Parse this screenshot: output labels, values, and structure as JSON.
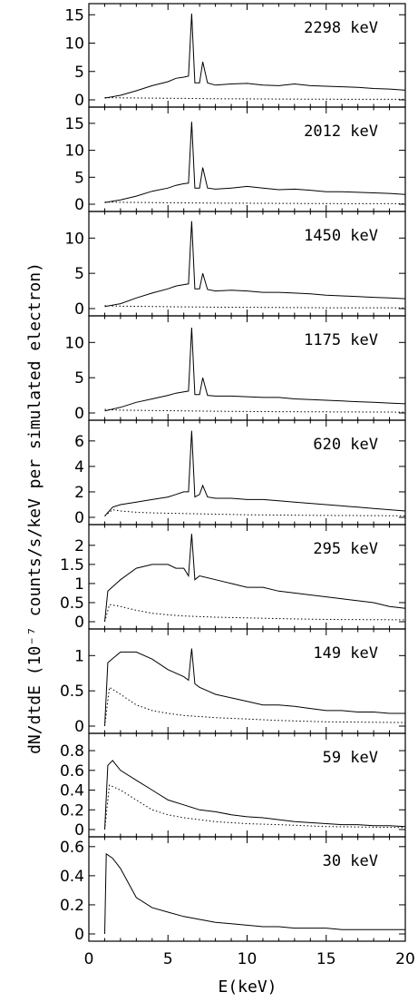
{
  "chart_data": {
    "type": "line",
    "layout": "stacked panels sharing x axis",
    "xlabel": "E(keV)",
    "ylabel": "dN/dtdE (10⁻⁷ counts/s/keV per simulated electron)",
    "xlim": [
      0,
      20
    ],
    "x_ticks": [
      0,
      5,
      10,
      15,
      20
    ],
    "x_tick_labels": [
      "0",
      "5",
      "10",
      "15",
      "20"
    ],
    "panels": [
      {
        "label": "2298 keV",
        "ylim": [
          0,
          16
        ],
        "yticks": [
          0,
          5,
          10,
          15
        ],
        "ytick_labels": [
          "0",
          "5",
          "10",
          "15"
        ],
        "series": [
          {
            "style": "solid",
            "x": [
              1,
              2,
              3,
              4,
              5,
              5.5,
              6,
              6.3,
              6.5,
              6.7,
              7,
              7.2,
              7.5,
              8,
              9,
              10,
              11,
              12,
              13,
              14,
              15,
              16,
              17,
              18,
              19,
              20
            ],
            "y": [
              0.3,
              0.8,
              1.6,
              2.5,
              3.2,
              3.8,
              4.0,
              4.2,
              15.2,
              3.0,
              3.0,
              6.7,
              3.0,
              2.6,
              2.8,
              2.9,
              2.6,
              2.5,
              2.8,
              2.5,
              2.4,
              2.3,
              2.2,
              2.0,
              1.9,
              1.7
            ]
          },
          {
            "style": "dotted",
            "x": [
              1,
              2,
              4,
              6,
              8,
              10,
              12,
              15,
              20
            ],
            "y": [
              0.4,
              0.35,
              0.3,
              0.25,
              0.2,
              0.18,
              0.15,
              0.12,
              0.1
            ]
          }
        ]
      },
      {
        "label": "2012 keV",
        "ylim": [
          0,
          17
        ],
        "yticks": [
          0,
          5,
          10,
          15
        ],
        "ytick_labels": [
          "0",
          "5",
          "10",
          "15"
        ],
        "series": [
          {
            "style": "solid",
            "x": [
              1,
              2,
              3,
              4,
              5,
              5.5,
              6,
              6.3,
              6.5,
              6.7,
              7,
              7.2,
              7.5,
              8,
              9,
              10,
              11,
              12,
              13,
              14,
              15,
              16,
              17,
              18,
              19,
              20
            ],
            "y": [
              0.3,
              0.8,
              1.5,
              2.4,
              3.0,
              3.5,
              3.8,
              3.9,
              15.3,
              3.0,
              3.0,
              6.8,
              3.0,
              2.8,
              3.0,
              3.3,
              3.0,
              2.7,
              2.8,
              2.6,
              2.3,
              2.3,
              2.2,
              2.1,
              2.0,
              1.8
            ]
          },
          {
            "style": "dotted",
            "x": [
              1,
              2,
              4,
              6,
              8,
              10,
              12,
              15,
              20
            ],
            "y": [
              0.4,
              0.35,
              0.3,
              0.25,
              0.2,
              0.18,
              0.15,
              0.12,
              0.1
            ]
          }
        ]
      },
      {
        "label": "1450 keV",
        "ylim": [
          0,
          13
        ],
        "yticks": [
          0,
          5,
          10
        ],
        "ytick_labels": [
          "0",
          "5",
          "10"
        ],
        "series": [
          {
            "style": "solid",
            "x": [
              1,
              2,
              3,
              4,
              5,
              5.5,
              6,
              6.3,
              6.5,
              6.7,
              7,
              7.2,
              7.5,
              8,
              9,
              10,
              11,
              12,
              13,
              14,
              15,
              16,
              17,
              18,
              19,
              20
            ],
            "y": [
              0.3,
              0.7,
              1.5,
              2.2,
              2.8,
              3.2,
              3.4,
              3.5,
              12.4,
              2.8,
              2.8,
              5.0,
              2.7,
              2.5,
              2.6,
              2.5,
              2.3,
              2.3,
              2.2,
              2.1,
              1.9,
              1.8,
              1.7,
              1.6,
              1.5,
              1.4
            ]
          },
          {
            "style": "dotted",
            "x": [
              1,
              2,
              4,
              6,
              8,
              10,
              12,
              15,
              20
            ],
            "y": [
              0.4,
              0.35,
              0.3,
              0.25,
              0.2,
              0.18,
              0.15,
              0.12,
              0.1
            ]
          }
        ]
      },
      {
        "label": "1175 keV",
        "ylim": [
          0,
          13
        ],
        "yticks": [
          0,
          5,
          10
        ],
        "ytick_labels": [
          "0",
          "5",
          "10"
        ],
        "series": [
          {
            "style": "solid",
            "x": [
              1,
              2,
              3,
              4,
              5,
              5.5,
              6,
              6.3,
              6.5,
              6.7,
              7,
              7.2,
              7.5,
              8,
              9,
              10,
              11,
              12,
              13,
              14,
              15,
              16,
              17,
              18,
              19,
              20
            ],
            "y": [
              0.3,
              0.8,
              1.5,
              2.0,
              2.5,
              2.8,
              3.0,
              3.1,
              12.1,
              2.6,
              2.6,
              5.0,
              2.5,
              2.4,
              2.4,
              2.3,
              2.2,
              2.2,
              2.0,
              1.9,
              1.8,
              1.7,
              1.6,
              1.5,
              1.4,
              1.3
            ]
          },
          {
            "style": "dotted",
            "x": [
              1,
              2,
              4,
              6,
              8,
              10,
              12,
              15,
              20
            ],
            "y": [
              0.5,
              0.4,
              0.35,
              0.3,
              0.25,
              0.2,
              0.18,
              0.15,
              0.12
            ]
          }
        ]
      },
      {
        "label": "620 keV",
        "ylim": [
          0,
          7.2
        ],
        "yticks": [
          0,
          2,
          4,
          6
        ],
        "ytick_labels": [
          "0",
          "2",
          "4",
          "6"
        ],
        "series": [
          {
            "style": "solid",
            "x": [
              1,
              1.5,
              2,
              3,
              4,
              5,
              5.5,
              6,
              6.3,
              6.5,
              6.7,
              7,
              7.2,
              7.5,
              8,
              9,
              10,
              11,
              12,
              13,
              14,
              15,
              16,
              17,
              18,
              19,
              20
            ],
            "y": [
              0.1,
              0.8,
              1.0,
              1.2,
              1.4,
              1.6,
              1.8,
              2.0,
              2.0,
              6.8,
              1.6,
              1.8,
              2.5,
              1.6,
              1.5,
              1.5,
              1.4,
              1.4,
              1.3,
              1.2,
              1.1,
              1.0,
              0.9,
              0.8,
              0.7,
              0.6,
              0.5
            ]
          },
          {
            "style": "dotted",
            "x": [
              1,
              1.5,
              2,
              3,
              4,
              6,
              8,
              10,
              12,
              15,
              20
            ],
            "y": [
              0.1,
              0.6,
              0.5,
              0.4,
              0.35,
              0.3,
              0.25,
              0.2,
              0.18,
              0.15,
              0.12
            ]
          }
        ]
      },
      {
        "label": "295 keV",
        "ylim": [
          0,
          2.4
        ],
        "yticks": [
          0,
          0.5,
          1,
          1.5,
          2
        ],
        "ytick_labels": [
          "0",
          "0.5",
          "1",
          "1.5",
          "2"
        ],
        "series": [
          {
            "style": "solid",
            "x": [
              1,
              1.2,
              2,
              3,
              4,
              5,
              5.5,
              6,
              6.3,
              6.5,
              6.7,
              7,
              8,
              9,
              10,
              11,
              12,
              13,
              14,
              15,
              16,
              17,
              18,
              19,
              20
            ],
            "y": [
              0.0,
              0.8,
              1.1,
              1.4,
              1.5,
              1.5,
              1.4,
              1.4,
              1.2,
              2.3,
              1.1,
              1.2,
              1.1,
              1.0,
              0.9,
              0.9,
              0.8,
              0.75,
              0.7,
              0.65,
              0.6,
              0.55,
              0.5,
              0.4,
              0.35
            ]
          },
          {
            "style": "dotted",
            "x": [
              1,
              1.3,
              2,
              3,
              4,
              5,
              6,
              8,
              10,
              12,
              15,
              20
            ],
            "y": [
              0.0,
              0.45,
              0.4,
              0.3,
              0.22,
              0.18,
              0.15,
              0.12,
              0.1,
              0.08,
              0.06,
              0.05
            ]
          }
        ]
      },
      {
        "label": "149 keV",
        "ylim": [
          0,
          1.3
        ],
        "yticks": [
          0,
          0.5,
          1
        ],
        "ytick_labels": [
          "0",
          "0.5",
          "1"
        ],
        "series": [
          {
            "style": "solid",
            "x": [
              1,
              1.2,
              2,
              3,
              4,
              5,
              6,
              6.3,
              6.5,
              6.7,
              7,
              8,
              9,
              10,
              11,
              12,
              13,
              14,
              15,
              16,
              17,
              18,
              19,
              20
            ],
            "y": [
              0.0,
              0.9,
              1.05,
              1.05,
              0.95,
              0.8,
              0.7,
              0.65,
              1.1,
              0.6,
              0.55,
              0.45,
              0.4,
              0.35,
              0.3,
              0.3,
              0.28,
              0.25,
              0.22,
              0.22,
              0.2,
              0.2,
              0.18,
              0.18
            ]
          },
          {
            "style": "dotted",
            "x": [
              1,
              1.3,
              2,
              3,
              4,
              5,
              6,
              8,
              10,
              12,
              15,
              20
            ],
            "y": [
              0.0,
              0.55,
              0.45,
              0.3,
              0.22,
              0.18,
              0.15,
              0.12,
              0.1,
              0.08,
              0.06,
              0.05
            ]
          }
        ]
      },
      {
        "label": "59 keV",
        "ylim": [
          0,
          0.92
        ],
        "yticks": [
          0,
          0.2,
          0.4,
          0.6,
          0.8
        ],
        "ytick_labels": [
          "0",
          "0.2",
          "0.4",
          "0.6",
          "0.8"
        ],
        "series": [
          {
            "style": "solid",
            "x": [
              1,
              1.2,
              1.5,
              2,
              3,
              4,
              5,
              6,
              7,
              8,
              9,
              10,
              11,
              12,
              13,
              14,
              15,
              16,
              17,
              18,
              19,
              20
            ],
            "y": [
              0.0,
              0.65,
              0.7,
              0.6,
              0.5,
              0.4,
              0.3,
              0.25,
              0.2,
              0.18,
              0.15,
              0.13,
              0.12,
              0.1,
              0.08,
              0.07,
              0.06,
              0.05,
              0.05,
              0.04,
              0.04,
              0.03
            ]
          },
          {
            "style": "dotted",
            "x": [
              1,
              1.3,
              2,
              3,
              4,
              5,
              6,
              8,
              10,
              12,
              15,
              20
            ],
            "y": [
              0.0,
              0.45,
              0.4,
              0.3,
              0.2,
              0.15,
              0.12,
              0.08,
              0.06,
              0.05,
              0.03,
              0.02
            ]
          }
        ]
      },
      {
        "label": "30 keV",
        "ylim": [
          0,
          0.63
        ],
        "yticks": [
          0,
          0.2,
          0.4,
          0.6
        ],
        "ytick_labels": [
          "0",
          "0.2",
          "0.4",
          "0.6"
        ],
        "series": [
          {
            "style": "solid",
            "x": [
              1,
              1.1,
              1.5,
              2,
              2.5,
              3,
              4,
              5,
              6,
              7,
              8,
              9,
              10,
              11,
              12,
              13,
              14,
              15,
              16,
              17,
              18,
              19,
              20
            ],
            "y": [
              0.0,
              0.55,
              0.52,
              0.45,
              0.35,
              0.25,
              0.18,
              0.15,
              0.12,
              0.1,
              0.08,
              0.07,
              0.06,
              0.05,
              0.05,
              0.04,
              0.04,
              0.04,
              0.03,
              0.03,
              0.03,
              0.03,
              0.03
            ]
          }
        ]
      }
    ]
  }
}
